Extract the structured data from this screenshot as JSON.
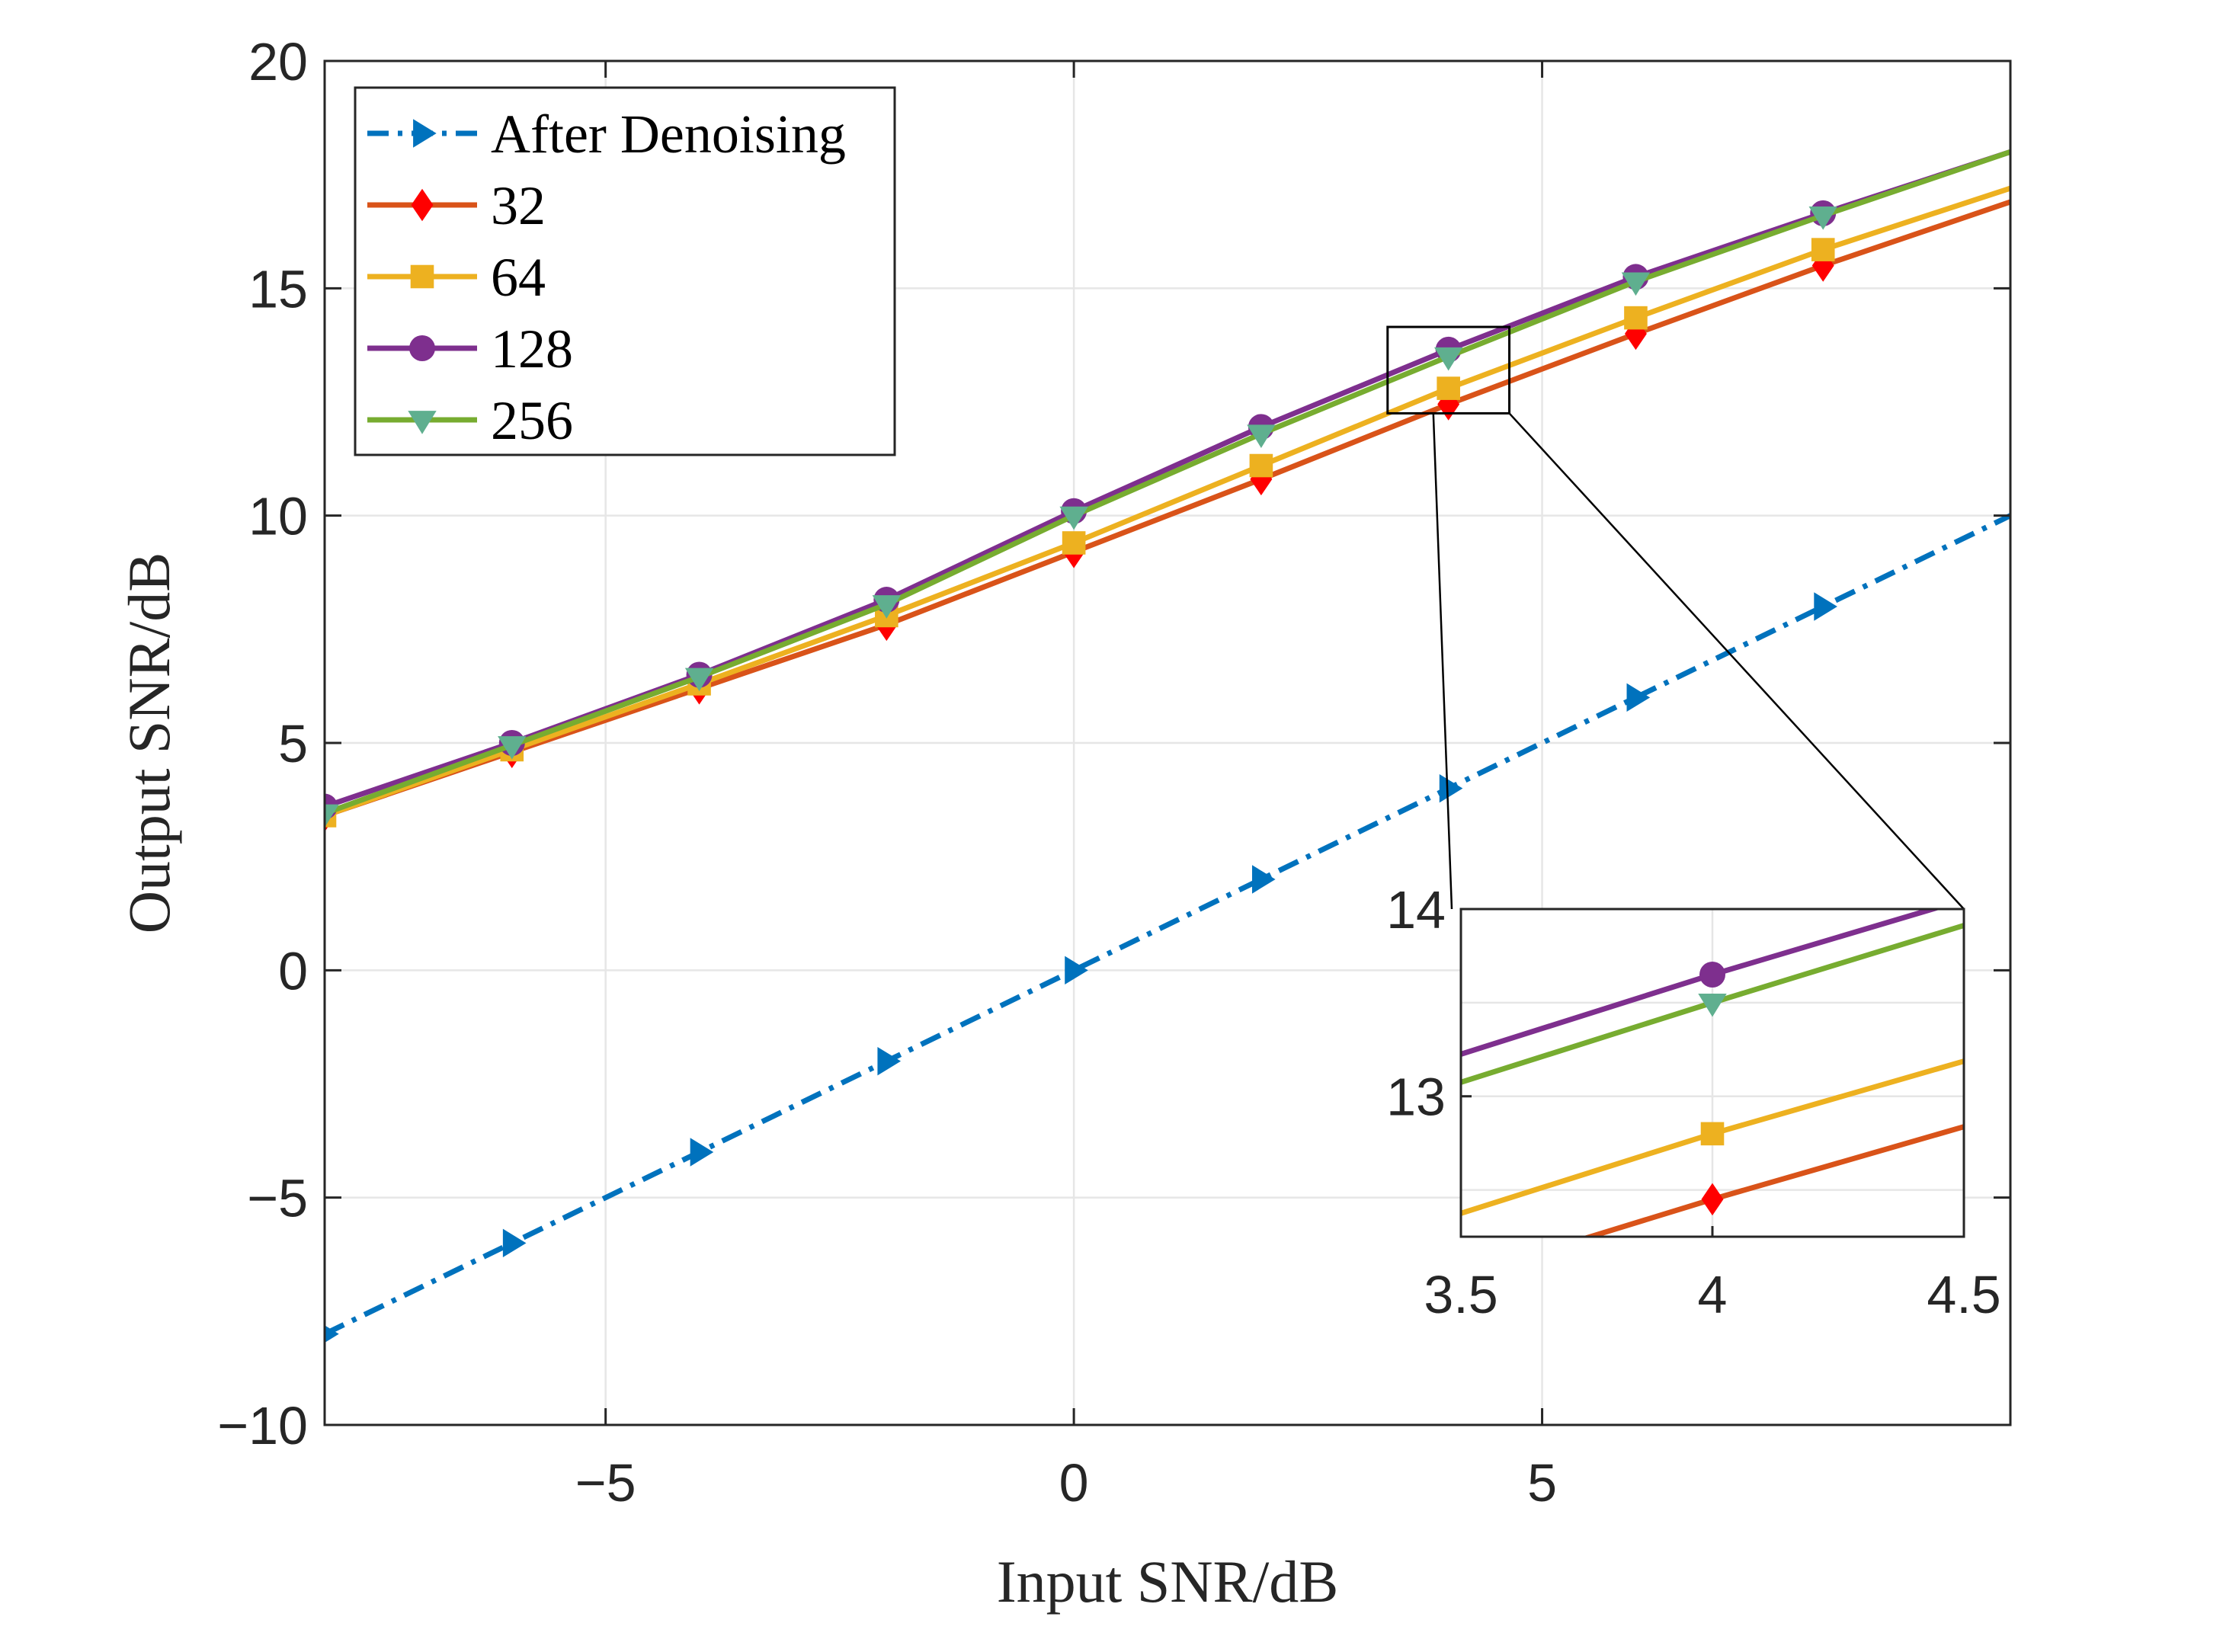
{
  "chart_data": {
    "type": "line",
    "title": "",
    "xlabel": "Input  SNR/dB",
    "ylabel": "Output SNR/dB",
    "xlim": [
      -8,
      10
    ],
    "ylim": [
      -10,
      20
    ],
    "xticks": [
      -5,
      0,
      5
    ],
    "xtick_labels": [
      "−5",
      "0",
      "5"
    ],
    "yticks": [
      -10,
      -5,
      0,
      5,
      10,
      15,
      20
    ],
    "ytick_labels": [
      "−10",
      "−5",
      "0",
      "5",
      "10",
      "15",
      "20"
    ],
    "grid": true,
    "legend_position": "top-left",
    "x": [
      -8,
      -6,
      -4,
      -2,
      0,
      2,
      4,
      6,
      8,
      10
    ],
    "series": [
      {
        "name": "After Denoising",
        "color": "#0072BD",
        "marker": "triangle-right",
        "line_style": "dash-dot",
        "values": [
          -8,
          -6,
          -4,
          -2,
          0,
          2,
          4,
          6,
          8,
          10
        ]
      },
      {
        "name": "32",
        "color": "#D95319",
        "marker_color": "#FF0000",
        "marker": "diamond",
        "line_style": "solid",
        "values": [
          3.4,
          4.8,
          6.2,
          7.6,
          9.2,
          10.8,
          12.45,
          14.0,
          15.5,
          16.9
        ]
      },
      {
        "name": "64",
        "color": "#EDB120",
        "marker": "square",
        "line_style": "solid",
        "values": [
          3.4,
          4.85,
          6.3,
          7.8,
          9.4,
          11.1,
          12.8,
          14.35,
          15.85,
          17.2
        ]
      },
      {
        "name": "128",
        "color": "#7E2F8E",
        "marker": "circle",
        "line_style": "solid",
        "values": [
          3.6,
          5.0,
          6.5,
          8.15,
          10.1,
          11.95,
          13.65,
          15.25,
          16.65,
          18.0
        ]
      },
      {
        "name": "256",
        "color": "#77AC30",
        "marker_color": "#5FAF8F",
        "marker": "triangle-down",
        "line_style": "solid",
        "values": [
          3.45,
          4.95,
          6.45,
          8.05,
          10.0,
          11.8,
          13.5,
          15.15,
          16.6,
          18.0
        ]
      }
    ],
    "inset": {
      "xlim": [
        3.5,
        4.5
      ],
      "ylim": [
        12.25,
        14
      ],
      "xticks": [
        3.5,
        4,
        4.5
      ],
      "xtick_labels": [
        "3.5",
        "4",
        "4.5"
      ],
      "yticks": [
        13,
        14
      ],
      "ytick_labels": [
        "13",
        "14"
      ],
      "grid": true,
      "zoom_region": {
        "x": [
          3.35,
          4.65
        ],
        "y": [
          12.25,
          14.15
        ]
      }
    }
  }
}
